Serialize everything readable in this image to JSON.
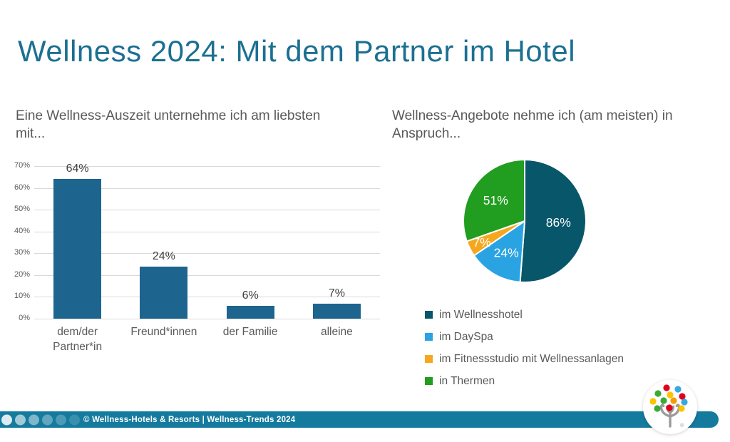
{
  "slide": {
    "title": "Wellness 2024: Mit dem Partner im Hotel",
    "footer_text": "© Wellness-Hotels & Resorts | Wellness-Trends 2024",
    "logo_name": "wellness-hotels-resorts-tree-logo"
  },
  "colors": {
    "title_teal": "#1b7092",
    "bar_blue": "#1d648e",
    "footer_teal": "#147b9e",
    "grid_gray": "#d9d9d9",
    "subtitle_gray": "#595959",
    "value_label_dark": "#3f3f3f",
    "pie_wellnesshotel": "#075669",
    "pie_dayspa": "#2aa3e3",
    "pie_fitnessstudio": "#f5a81e",
    "pie_thermen": "#219d20",
    "logo_red": "#e2001a",
    "logo_blue": "#36a9e1",
    "logo_green": "#3aaa35",
    "logo_yellow": "#fdc300",
    "logo_orange": "#f59c00",
    "logo_trunk_gray": "#9b9b9a"
  },
  "chart_data": [
    {
      "type": "bar",
      "title": "Eine Wellness-Auszeit unternehme ich am liebsten mit...",
      "categories": [
        "dem/der Partner*in",
        "Freund*innen",
        "der Familie",
        "alleine"
      ],
      "values": [
        64,
        24,
        6,
        7
      ],
      "value_labels": [
        "64%",
        "24%",
        "6%",
        "7%"
      ],
      "xlabel": "",
      "ylabel": "",
      "ylim": [
        0,
        70
      ],
      "yticks": [
        "0%",
        "10%",
        "20%",
        "30%",
        "40%",
        "50%",
        "60%",
        "70%"
      ],
      "grid": true,
      "bar_color": "#1d648e",
      "legend_position": "none"
    },
    {
      "type": "pie",
      "title": "Wellness-Angebote nehme ich (am meisten) in Anspruch...",
      "labels": [
        "im Wellnesshotel",
        "im DaySpa",
        "im Fitnessstudio mit Wellnessanlagen",
        "in Thermen"
      ],
      "values": [
        86,
        24,
        7,
        51
      ],
      "value_labels": [
        "86%",
        "24%",
        "7%",
        "51%"
      ],
      "colors": [
        "#075669",
        "#2aa3e3",
        "#f5a81e",
        "#219d20"
      ],
      "start_angle_deg": 0,
      "direction": "clockwise",
      "slice_label_color": "#ffffff",
      "legend_position": "bottom-left"
    }
  ]
}
